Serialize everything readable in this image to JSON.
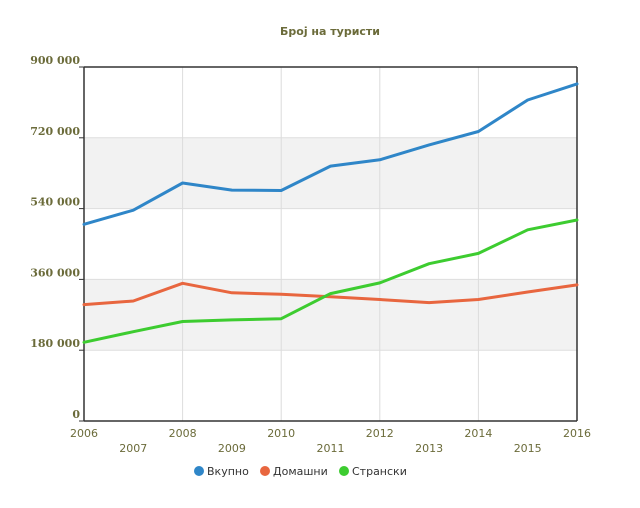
{
  "chart_data": {
    "type": "line",
    "title": "Број на туристи",
    "x": [
      "2006",
      "2007",
      "2008",
      "2009",
      "2010",
      "2011",
      "2012",
      "2013",
      "2014",
      "2015",
      "2016"
    ],
    "ylim": [
      0,
      900000
    ],
    "y_ticks": [
      0,
      180000,
      360000,
      540000,
      720000,
      900000
    ],
    "y_tick_labels": [
      "0",
      "180 000",
      "360 000",
      "540 000",
      "720 000",
      "900 000"
    ],
    "grid": true,
    "legend_position": "bottom-center",
    "series": [
      {
        "name": "Вкупно",
        "color": "#2f86c8",
        "values": [
          500000,
          536000,
          605000,
          587000,
          586000,
          648000,
          664000,
          702000,
          736000,
          816000,
          857000
        ]
      },
      {
        "name": "Домашни",
        "color": "#e8663f",
        "values": [
          296000,
          305000,
          350000,
          326000,
          322000,
          316000,
          309000,
          301000,
          309000,
          328000,
          346000
        ]
      },
      {
        "name": "Странски",
        "color": "#3dcc30",
        "values": [
          200000,
          227000,
          253000,
          257000,
          260000,
          324000,
          351000,
          400000,
          426000,
          486000,
          511000
        ]
      }
    ]
  }
}
